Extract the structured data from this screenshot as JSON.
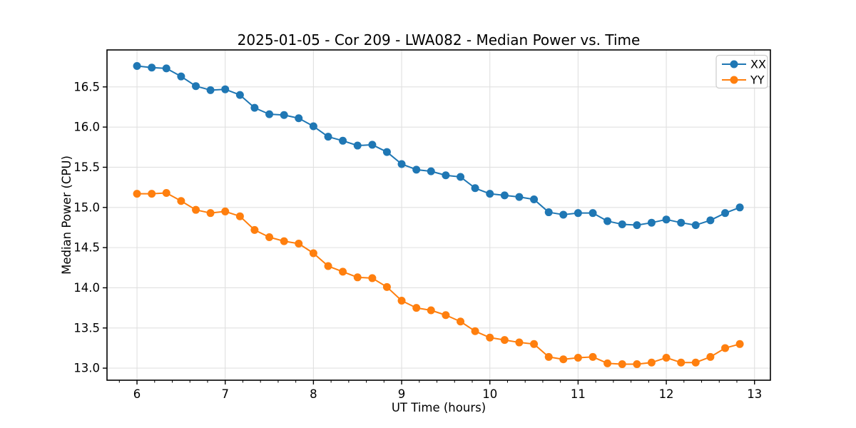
{
  "page": {
    "background": "#ffffff"
  },
  "chart_data": {
    "type": "line",
    "title": "2025-01-05 - Cor 209 - LWA082 - Median Power vs. Time",
    "xlabel": "UT Time (hours)",
    "ylabel": "Median Power (CPU)",
    "xlim": [
      5.66,
      13.18
    ],
    "ylim": [
      12.85,
      16.96
    ],
    "xticks": [
      6,
      7,
      8,
      9,
      10,
      11,
      12,
      13
    ],
    "xtick_labels": [
      "6",
      "7",
      "8",
      "9",
      "10",
      "11",
      "12",
      "13"
    ],
    "yticks": [
      13.0,
      13.5,
      14.0,
      14.5,
      15.0,
      15.5,
      16.0,
      16.5
    ],
    "ytick_labels": [
      "13.0",
      "13.5",
      "14.0",
      "14.5",
      "15.0",
      "15.5",
      "16.0",
      "16.5"
    ],
    "minor_xtick_step": 0.2,
    "grid": true,
    "grid_color": "#e0e0e0",
    "frame_color": "#000000",
    "legend": {
      "position": "upper right",
      "entries": [
        "XX",
        "YY"
      ]
    },
    "x": [
      6.0,
      6.167,
      6.333,
      6.5,
      6.667,
      6.833,
      7.0,
      7.167,
      7.333,
      7.5,
      7.667,
      7.833,
      8.0,
      8.167,
      8.333,
      8.5,
      8.667,
      8.833,
      9.0,
      9.167,
      9.333,
      9.5,
      9.667,
      9.833,
      10.0,
      10.167,
      10.333,
      10.5,
      10.667,
      10.833,
      11.0,
      11.167,
      11.333,
      11.5,
      11.667,
      11.833,
      12.0,
      12.167,
      12.333,
      12.5,
      12.667,
      12.833
    ],
    "series": [
      {
        "name": "XX",
        "color": "#1f77b4",
        "values": [
          16.76,
          16.74,
          16.73,
          16.63,
          16.51,
          16.46,
          16.47,
          16.4,
          16.24,
          16.16,
          16.15,
          16.11,
          16.01,
          15.88,
          15.83,
          15.77,
          15.78,
          15.69,
          15.54,
          15.47,
          15.45,
          15.4,
          15.38,
          15.24,
          15.17,
          15.15,
          15.13,
          15.1,
          14.94,
          14.91,
          14.93,
          14.93,
          14.83,
          14.79,
          14.78,
          14.81,
          14.85,
          14.81,
          14.78,
          14.84,
          14.93,
          15.0
        ]
      },
      {
        "name": "YY",
        "color": "#ff7f0e",
        "values": [
          15.17,
          15.17,
          15.18,
          15.08,
          14.97,
          14.93,
          14.95,
          14.89,
          14.72,
          14.63,
          14.58,
          14.55,
          14.43,
          14.27,
          14.2,
          14.13,
          14.12,
          14.01,
          13.84,
          13.75,
          13.72,
          13.66,
          13.58,
          13.46,
          13.38,
          13.35,
          13.32,
          13.3,
          13.14,
          13.11,
          13.13,
          13.14,
          13.06,
          13.05,
          13.05,
          13.07,
          13.13,
          13.07,
          13.07,
          13.14,
          13.25,
          13.3
        ]
      }
    ]
  }
}
